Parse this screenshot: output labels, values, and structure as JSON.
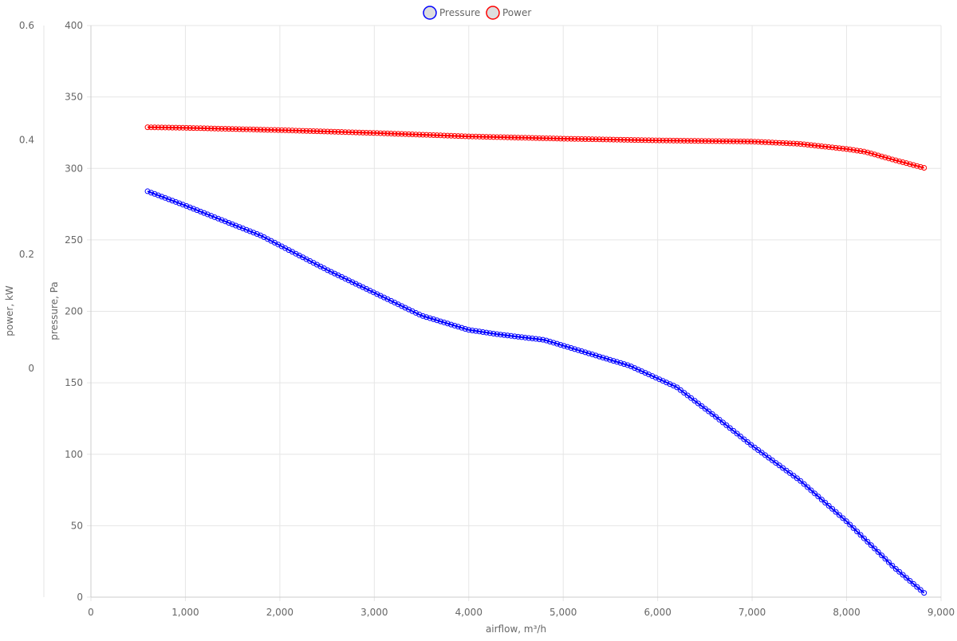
{
  "chart_data": {
    "type": "line",
    "legend": {
      "placement": "top-center"
    },
    "grid": true,
    "x_axis": {
      "label": "airflow, m³/h",
      "range": [
        0,
        9000
      ],
      "ticks": [
        "0",
        "1,000",
        "2,000",
        "3,000",
        "4,000",
        "5,000",
        "6,000",
        "7,000",
        "8,000",
        "9,000"
      ]
    },
    "y_axis_pressure": {
      "label": "pressure, Pa",
      "range": [
        0,
        400
      ],
      "ticks": [
        "0",
        "50",
        "100",
        "150",
        "200",
        "250",
        "300",
        "350",
        "400"
      ]
    },
    "y_axis_power": {
      "label": "power, kW",
      "range": [
        -0.4,
        0.6
      ],
      "ticks": [
        "0",
        "0.2",
        "0.4",
        "0.6"
      ]
    },
    "series": [
      {
        "name": "Pressure",
        "axis": "pressure",
        "color": "#0000ff",
        "x": [
          600,
          1000,
          1800,
          2500,
          3000,
          3500,
          4000,
          4300,
          4800,
          5200,
          5700,
          6200,
          6600,
          7000,
          7500,
          8000,
          8500,
          8820
        ],
        "values": [
          284,
          274,
          253,
          229,
          213,
          197,
          187,
          184,
          180,
          172,
          162,
          147,
          127,
          106,
          82,
          53,
          21,
          3
        ]
      },
      {
        "name": "Power",
        "axis": "power",
        "color": "#ff0000",
        "x": [
          600,
          1000,
          2000,
          3000,
          4000,
          5000,
          6000,
          7000,
          7500,
          8000,
          8200,
          8500,
          8820
        ],
        "values": [
          0.422,
          0.421,
          0.417,
          0.412,
          0.406,
          0.402,
          0.399,
          0.397,
          0.393,
          0.384,
          0.379,
          0.365,
          0.351
        ]
      }
    ]
  }
}
